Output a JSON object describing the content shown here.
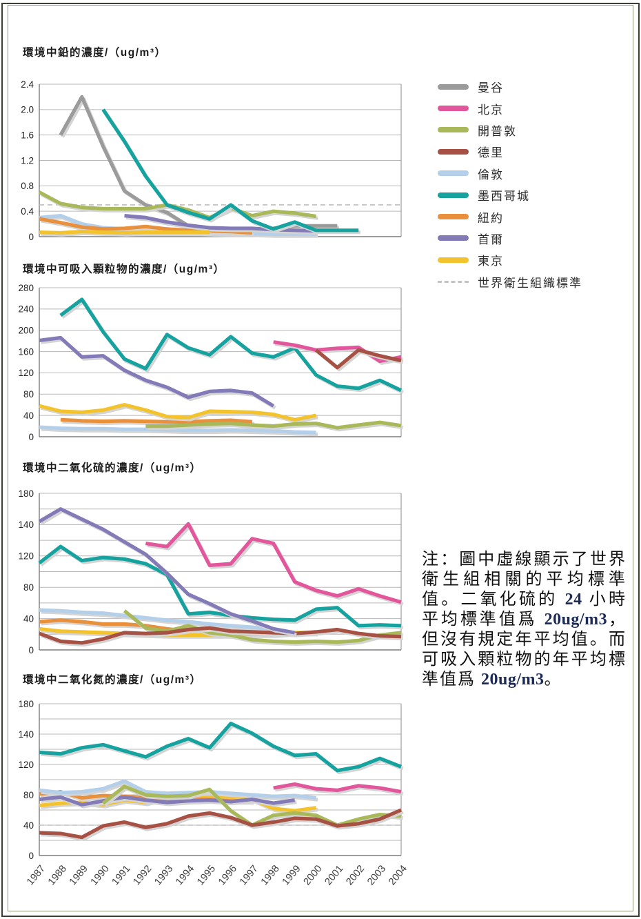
{
  "titles": {
    "chart1": "環境中鉛的濃度/（ug/m³）",
    "chart2": "環境中可吸入顆粒物的濃度/（ug/m³）",
    "chart3": "環境中二氧化硫的濃度/（ug/m³）",
    "chart4": "環境中二氧化氮的濃度/（ug/m³）"
  },
  "legend": {
    "items": [
      {
        "key": "bangkok",
        "label": "曼谷",
        "color": "#9b9b9b"
      },
      {
        "key": "beijing",
        "label": "北京",
        "color": "#e2579c"
      },
      {
        "key": "capetown",
        "label": "開普敦",
        "color": "#a9b959"
      },
      {
        "key": "delhi",
        "label": "德里",
        "color": "#a65144"
      },
      {
        "key": "london",
        "label": "倫敦",
        "color": "#b4cfe9"
      },
      {
        "key": "mexico",
        "label": "墨西哥城",
        "color": "#16a3a0"
      },
      {
        "key": "newyork",
        "label": "紐約",
        "color": "#e9903d"
      },
      {
        "key": "seoul",
        "label": "首爾",
        "color": "#837ab8"
      },
      {
        "key": "tokyo",
        "label": "東京",
        "color": "#f3c32d"
      }
    ],
    "who": {
      "label": "世界衛生組織標準",
      "color": "#c3c3c3"
    }
  },
  "note": {
    "segments": [
      {
        "text": "注：圖中虛線顯示了世界衛生組相關的平均標準值。二氧化硫的 ",
        "bold": false
      },
      {
        "text": "24",
        "bold": true
      },
      {
        "text": " 小時平均標準值爲 ",
        "bold": false
      },
      {
        "text": "20ug/m3",
        "bold": true
      },
      {
        "text": "，但沒有規定年平均值。而可吸入顆粒物的年平均標準值爲 ",
        "bold": false
      },
      {
        "text": "20ug/m3",
        "bold": true
      },
      {
        "text": "。",
        "bold": false
      }
    ]
  },
  "chart_data": [
    {
      "type": "line",
      "title": "環境中鉛的濃度/（ug/m³）",
      "x": [
        1987,
        1988,
        1989,
        1990,
        1991,
        1992,
        1993,
        1994,
        1995,
        1996,
        1997,
        1998,
        1999,
        2000,
        2001,
        2002,
        2003,
        2004
      ],
      "ylim": [
        0,
        2.4
      ],
      "yticks": [
        0,
        0.4,
        0.8,
        1.2,
        1.6,
        2.0,
        2.4
      ],
      "who_line": 0.5,
      "series": [
        {
          "key": "bangkok",
          "values": [
            null,
            1.6,
            2.2,
            1.42,
            0.72,
            0.5,
            0.38,
            0.17,
            0.13,
            0.12,
            0.12,
            0.13,
            0.17,
            0.17,
            0.17,
            null,
            null,
            null
          ]
        },
        {
          "key": "capetown",
          "values": [
            0.7,
            0.52,
            0.46,
            0.44,
            0.44,
            0.44,
            0.5,
            0.42,
            0.3,
            0.45,
            0.33,
            0.4,
            0.37,
            0.32,
            null,
            null,
            null,
            null
          ]
        },
        {
          "key": "london",
          "values": [
            0.3,
            0.33,
            0.2,
            0.14,
            0.12,
            0.1,
            0.08,
            0.07,
            0.06,
            0.05,
            0.05,
            0.04,
            0.04,
            0.04,
            null,
            null,
            null,
            null
          ]
        },
        {
          "key": "newyork",
          "values": [
            0.28,
            0.22,
            0.15,
            0.12,
            0.13,
            0.16,
            0.12,
            0.1,
            0.09,
            0.08,
            0.06,
            null,
            null,
            null,
            null,
            null,
            null,
            null
          ]
        },
        {
          "key": "seoul",
          "values": [
            null,
            null,
            null,
            null,
            0.33,
            0.3,
            0.23,
            0.18,
            0.14,
            0.13,
            0.13,
            0.11,
            0.1,
            0.09,
            null,
            null,
            null,
            null
          ]
        },
        {
          "key": "tokyo",
          "values": [
            0.07,
            0.06,
            0.08,
            0.07,
            0.06,
            0.07,
            0.07,
            0.07,
            0.07,
            null,
            null,
            null,
            null,
            null,
            null,
            null,
            null,
            null
          ]
        },
        {
          "key": "mexico",
          "values": [
            null,
            null,
            null,
            2.0,
            1.5,
            0.95,
            0.5,
            0.38,
            0.28,
            0.5,
            0.25,
            0.12,
            0.23,
            0.1,
            0.1,
            0.1,
            null,
            null
          ]
        }
      ]
    },
    {
      "type": "line",
      "title": "環境中可吸入顆粒物的濃度/（ug/m³）",
      "x": [
        1987,
        1988,
        1989,
        1990,
        1991,
        1992,
        1993,
        1994,
        1995,
        1996,
        1997,
        1998,
        1999,
        2000,
        2001,
        2002,
        2003,
        2004
      ],
      "ylim": [
        0,
        280
      ],
      "yticks": [
        0,
        40,
        80,
        120,
        160,
        200,
        240,
        280
      ],
      "who_line": null,
      "series": [
        {
          "key": "london",
          "values": [
            18,
            16,
            15,
            15,
            14,
            14,
            13,
            12,
            12,
            13,
            12,
            11,
            9,
            8,
            null,
            null,
            null,
            null
          ]
        },
        {
          "key": "newyork",
          "values": [
            null,
            32,
            30,
            29,
            30,
            29,
            28,
            28,
            30,
            31,
            28,
            null,
            null,
            null,
            null,
            null,
            null,
            null
          ]
        },
        {
          "key": "tokyo",
          "values": [
            58,
            48,
            46,
            50,
            60,
            50,
            38,
            36,
            48,
            47,
            46,
            42,
            32,
            40,
            null,
            null,
            null,
            null
          ]
        },
        {
          "key": "capetown",
          "values": [
            null,
            null,
            null,
            null,
            null,
            20,
            20,
            22,
            24,
            25,
            22,
            20,
            24,
            25,
            17,
            22,
            27,
            21
          ]
        },
        {
          "key": "seoul",
          "values": [
            181,
            186,
            150,
            152,
            125,
            106,
            93,
            74,
            85,
            87,
            82,
            58,
            null,
            null,
            null,
            null,
            null,
            null
          ]
        },
        {
          "key": "mexico",
          "values": [
            null,
            228,
            258,
            197,
            146,
            128,
            192,
            167,
            154,
            188,
            157,
            150,
            167,
            116,
            95,
            91,
            106,
            87
          ]
        },
        {
          "key": "beijing",
          "values": [
            null,
            null,
            null,
            null,
            null,
            null,
            null,
            null,
            null,
            null,
            null,
            178,
            172,
            163,
            166,
            168,
            142,
            150
          ]
        },
        {
          "key": "delhi",
          "values": [
            null,
            null,
            null,
            null,
            null,
            null,
            null,
            null,
            null,
            null,
            null,
            null,
            null,
            163,
            130,
            163,
            152,
            143
          ]
        }
      ]
    },
    {
      "type": "line",
      "title": "環境中二氧化硫的濃度/（ug/m³）",
      "x": [
        1987,
        1988,
        1989,
        1990,
        1991,
        1992,
        1993,
        1994,
        1995,
        1996,
        1997,
        1998,
        1999,
        2000,
        2001,
        2002,
        2003,
        2004
      ],
      "ylim": [
        0,
        180
      ],
      "yticks": [
        0,
        40,
        80,
        120,
        140,
        180
      ],
      "axis": "broken",
      "who_line": null,
      "series": [
        {
          "key": "london",
          "values": [
            51,
            50,
            48,
            47,
            44,
            41,
            38,
            36,
            33,
            31,
            29,
            26,
            null,
            null,
            null,
            null,
            null,
            null
          ]
        },
        {
          "key": "newyork",
          "values": [
            36,
            38,
            36,
            33,
            33,
            31,
            27,
            24,
            26,
            24,
            22,
            null,
            null,
            null,
            null,
            null,
            null,
            null
          ]
        },
        {
          "key": "tokyo",
          "values": [
            27,
            24,
            23,
            22,
            21,
            20,
            19,
            19,
            19,
            19,
            20,
            20,
            22,
            22,
            null,
            null,
            null,
            null
          ]
        },
        {
          "key": "capetown",
          "values": [
            null,
            null,
            null,
            null,
            50,
            28,
            24,
            31,
            22,
            19,
            13,
            11,
            10,
            11,
            10,
            12,
            19,
            22
          ]
        },
        {
          "key": "delhi",
          "values": [
            21,
            11,
            9,
            14,
            22,
            21,
            22,
            26,
            28,
            24,
            23,
            22,
            21,
            23,
            26,
            21,
            18,
            17
          ]
        },
        {
          "key": "mexico",
          "values": [
            111,
            126,
            114,
            118,
            116,
            110,
            96,
            46,
            48,
            44,
            41,
            39,
            38,
            52,
            54,
            31,
            32,
            31
          ]
        },
        {
          "key": "seoul",
          "values": [
            144,
            160,
            147,
            137,
            129,
            121,
            98,
            71,
            59,
            46,
            37,
            27,
            22,
            null,
            null,
            null,
            null,
            null
          ]
        },
        {
          "key": "beijing",
          "values": [
            null,
            null,
            null,
            null,
            null,
            128,
            126,
            141,
            108,
            110,
            131,
            128,
            87,
            76,
            69,
            78,
            69,
            61
          ]
        }
      ]
    },
    {
      "type": "line",
      "title": "環境中二氧化氮的濃度/（ug/m³）",
      "x": [
        1987,
        1988,
        1989,
        1990,
        1991,
        1992,
        1993,
        1994,
        1995,
        1996,
        1997,
        1998,
        1999,
        2000,
        2001,
        2002,
        2003,
        2004
      ],
      "ylim": [
        0,
        180
      ],
      "yticks": [
        0,
        40,
        80,
        120,
        140,
        180
      ],
      "axis": "broken",
      "who_line": 40,
      "series": [
        {
          "key": "tokyo",
          "values": [
            66,
            69,
            70,
            67,
            73,
            70,
            77,
            76,
            79,
            77,
            74,
            62,
            59,
            63,
            null,
            null,
            null,
            null
          ]
        },
        {
          "key": "newyork",
          "values": [
            81,
            84,
            76,
            79,
            78,
            76,
            73,
            74,
            74,
            72,
            72,
            null,
            null,
            null,
            null,
            null,
            null,
            null
          ]
        },
        {
          "key": "london",
          "values": [
            86,
            83,
            84,
            88,
            98,
            84,
            82,
            83,
            84,
            82,
            80,
            78,
            79,
            76,
            null,
            null,
            null,
            null
          ]
        },
        {
          "key": "seoul",
          "values": [
            74,
            77,
            67,
            72,
            77,
            73,
            70,
            72,
            73,
            71,
            74,
            69,
            73,
            null,
            null,
            null,
            null,
            null
          ]
        },
        {
          "key": "capetown",
          "values": [
            null,
            null,
            null,
            69,
            91,
            80,
            78,
            79,
            87,
            59,
            40,
            53,
            56,
            53,
            40,
            48,
            54,
            52
          ]
        },
        {
          "key": "delhi",
          "values": [
            30,
            29,
            24,
            39,
            44,
            37,
            42,
            52,
            56,
            50,
            40,
            44,
            49,
            48,
            39,
            42,
            48,
            60
          ]
        },
        {
          "key": "beijing",
          "values": [
            null,
            null,
            null,
            null,
            null,
            null,
            null,
            null,
            null,
            null,
            null,
            89,
            94,
            88,
            86,
            92,
            89,
            84
          ]
        },
        {
          "key": "mexico",
          "values": [
            128,
            127,
            131,
            133,
            129,
            125,
            132,
            137,
            131,
            154,
            141,
            132,
            126,
            127,
            112,
            117,
            124,
            117
          ]
        }
      ]
    }
  ]
}
